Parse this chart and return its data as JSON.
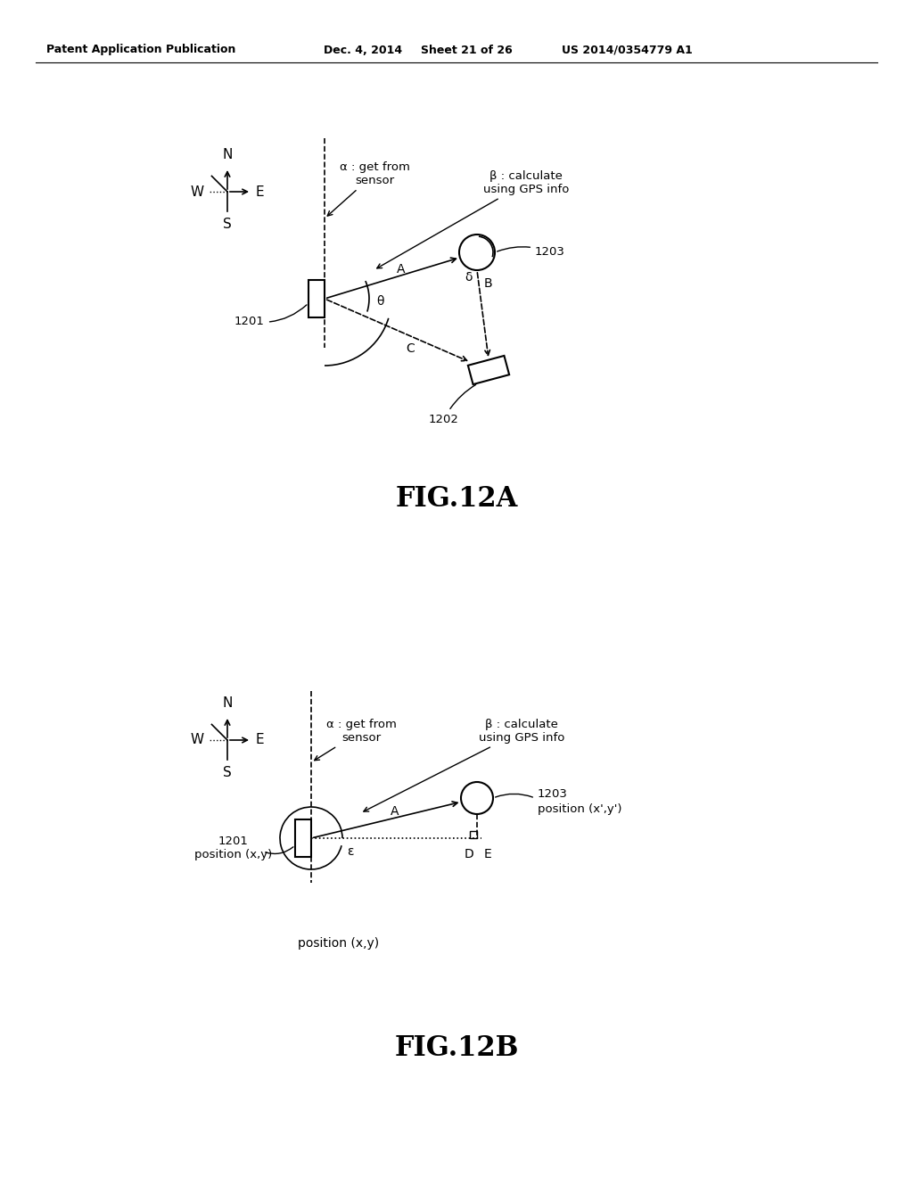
{
  "bg_color": "#ffffff",
  "header_text": "Patent Application Publication",
  "header_date": "Dec. 4, 2014",
  "header_sheet": "Sheet 21 of 26",
  "header_patent": "US 2014/0354779 A1",
  "fig12a_label": "FIG.12A",
  "fig12b_label": "FIG.12B",
  "label_1201": "1201",
  "label_1202": "1202",
  "label_1203": "1203",
  "label_position_xy": "position (x,y)",
  "label_position_xpyp": "position (x',y')",
  "alpha_label": "α : get from\nsensor",
  "beta_label": "β : calculate\nusing GPS info",
  "compass_N": "N",
  "compass_S": "S",
  "compass_E": "E",
  "compass_W": "W"
}
